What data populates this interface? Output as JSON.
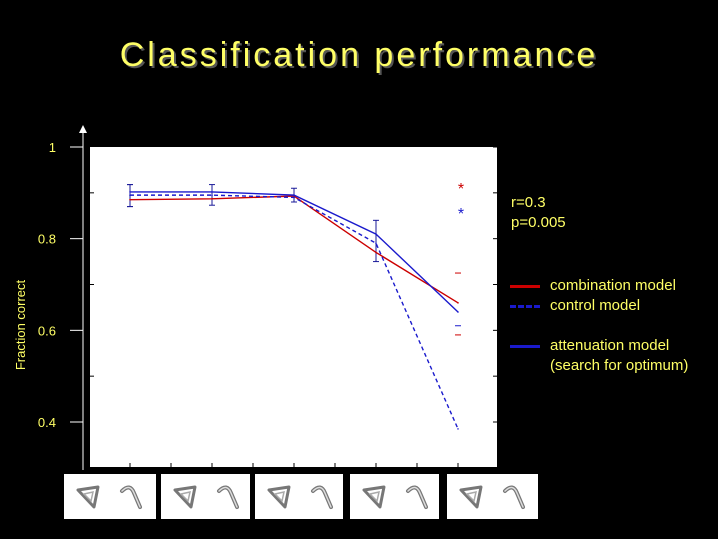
{
  "slide": {
    "title": "Classification performance"
  },
  "stats": {
    "r_text": "r=0.3",
    "p_text": "p=0.005"
  },
  "legend": {
    "combination": {
      "label": "combination model",
      "color": "#cc0000",
      "style": "solid"
    },
    "control": {
      "label": "control model",
      "color": "#1a1acc",
      "style": "dashed"
    },
    "attenuation": {
      "label": "attenuation model",
      "sublabel": "(search for optimum)",
      "color": "#1a1acc",
      "style": "solid"
    }
  },
  "chart_data": {
    "type": "line",
    "ylabel": "Fraction correct",
    "xlabel": "",
    "ylim": [
      0.3,
      1.0
    ],
    "y_ticks": [
      1,
      0.8,
      0.6,
      0.4
    ],
    "y_tick_labels": [
      "1",
      "0.8",
      "0.6",
      "0.4"
    ],
    "x": [
      1,
      2,
      3,
      4,
      5
    ],
    "series": [
      {
        "name": "combination model",
        "color": "#cc0000",
        "dash": false,
        "values": [
          0.885,
          0.887,
          0.893,
          0.77,
          0.66
        ]
      },
      {
        "name": "control model",
        "color": "#1a1acc",
        "dash": true,
        "values": [
          0.895,
          0.895,
          0.89,
          0.79,
          0.385
        ]
      },
      {
        "name": "attenuation model",
        "color": "#1a1acc",
        "dash": false,
        "values": [
          0.902,
          0.902,
          0.895,
          0.81,
          0.64
        ]
      }
    ],
    "error_bars": [
      {
        "x": 1,
        "lo": 0.87,
        "hi": 0.918
      },
      {
        "x": 2,
        "lo": 0.873,
        "hi": 0.918
      },
      {
        "x": 3,
        "lo": 0.88,
        "hi": 0.91
      },
      {
        "x": 4,
        "lo": 0.75,
        "hi": 0.84
      }
    ],
    "extra_markers": [
      {
        "x": 5,
        "y": 0.725,
        "color": "#cc0000"
      },
      {
        "x": 5,
        "y": 0.59,
        "color": "#cc0000"
      },
      {
        "x": 5,
        "y": 0.61,
        "color": "#1a1acc"
      }
    ],
    "significance": [
      {
        "text": "*",
        "x": 5,
        "y": 0.915,
        "color": "#cc0000"
      },
      {
        "text": "*",
        "x": 5,
        "y": 0.86,
        "color": "#1a1acc"
      }
    ]
  },
  "stimulus_panels": [
    {
      "name": "panel-1"
    },
    {
      "name": "panel-2"
    },
    {
      "name": "panel-3"
    },
    {
      "name": "panel-4"
    },
    {
      "name": "panel-5"
    }
  ]
}
